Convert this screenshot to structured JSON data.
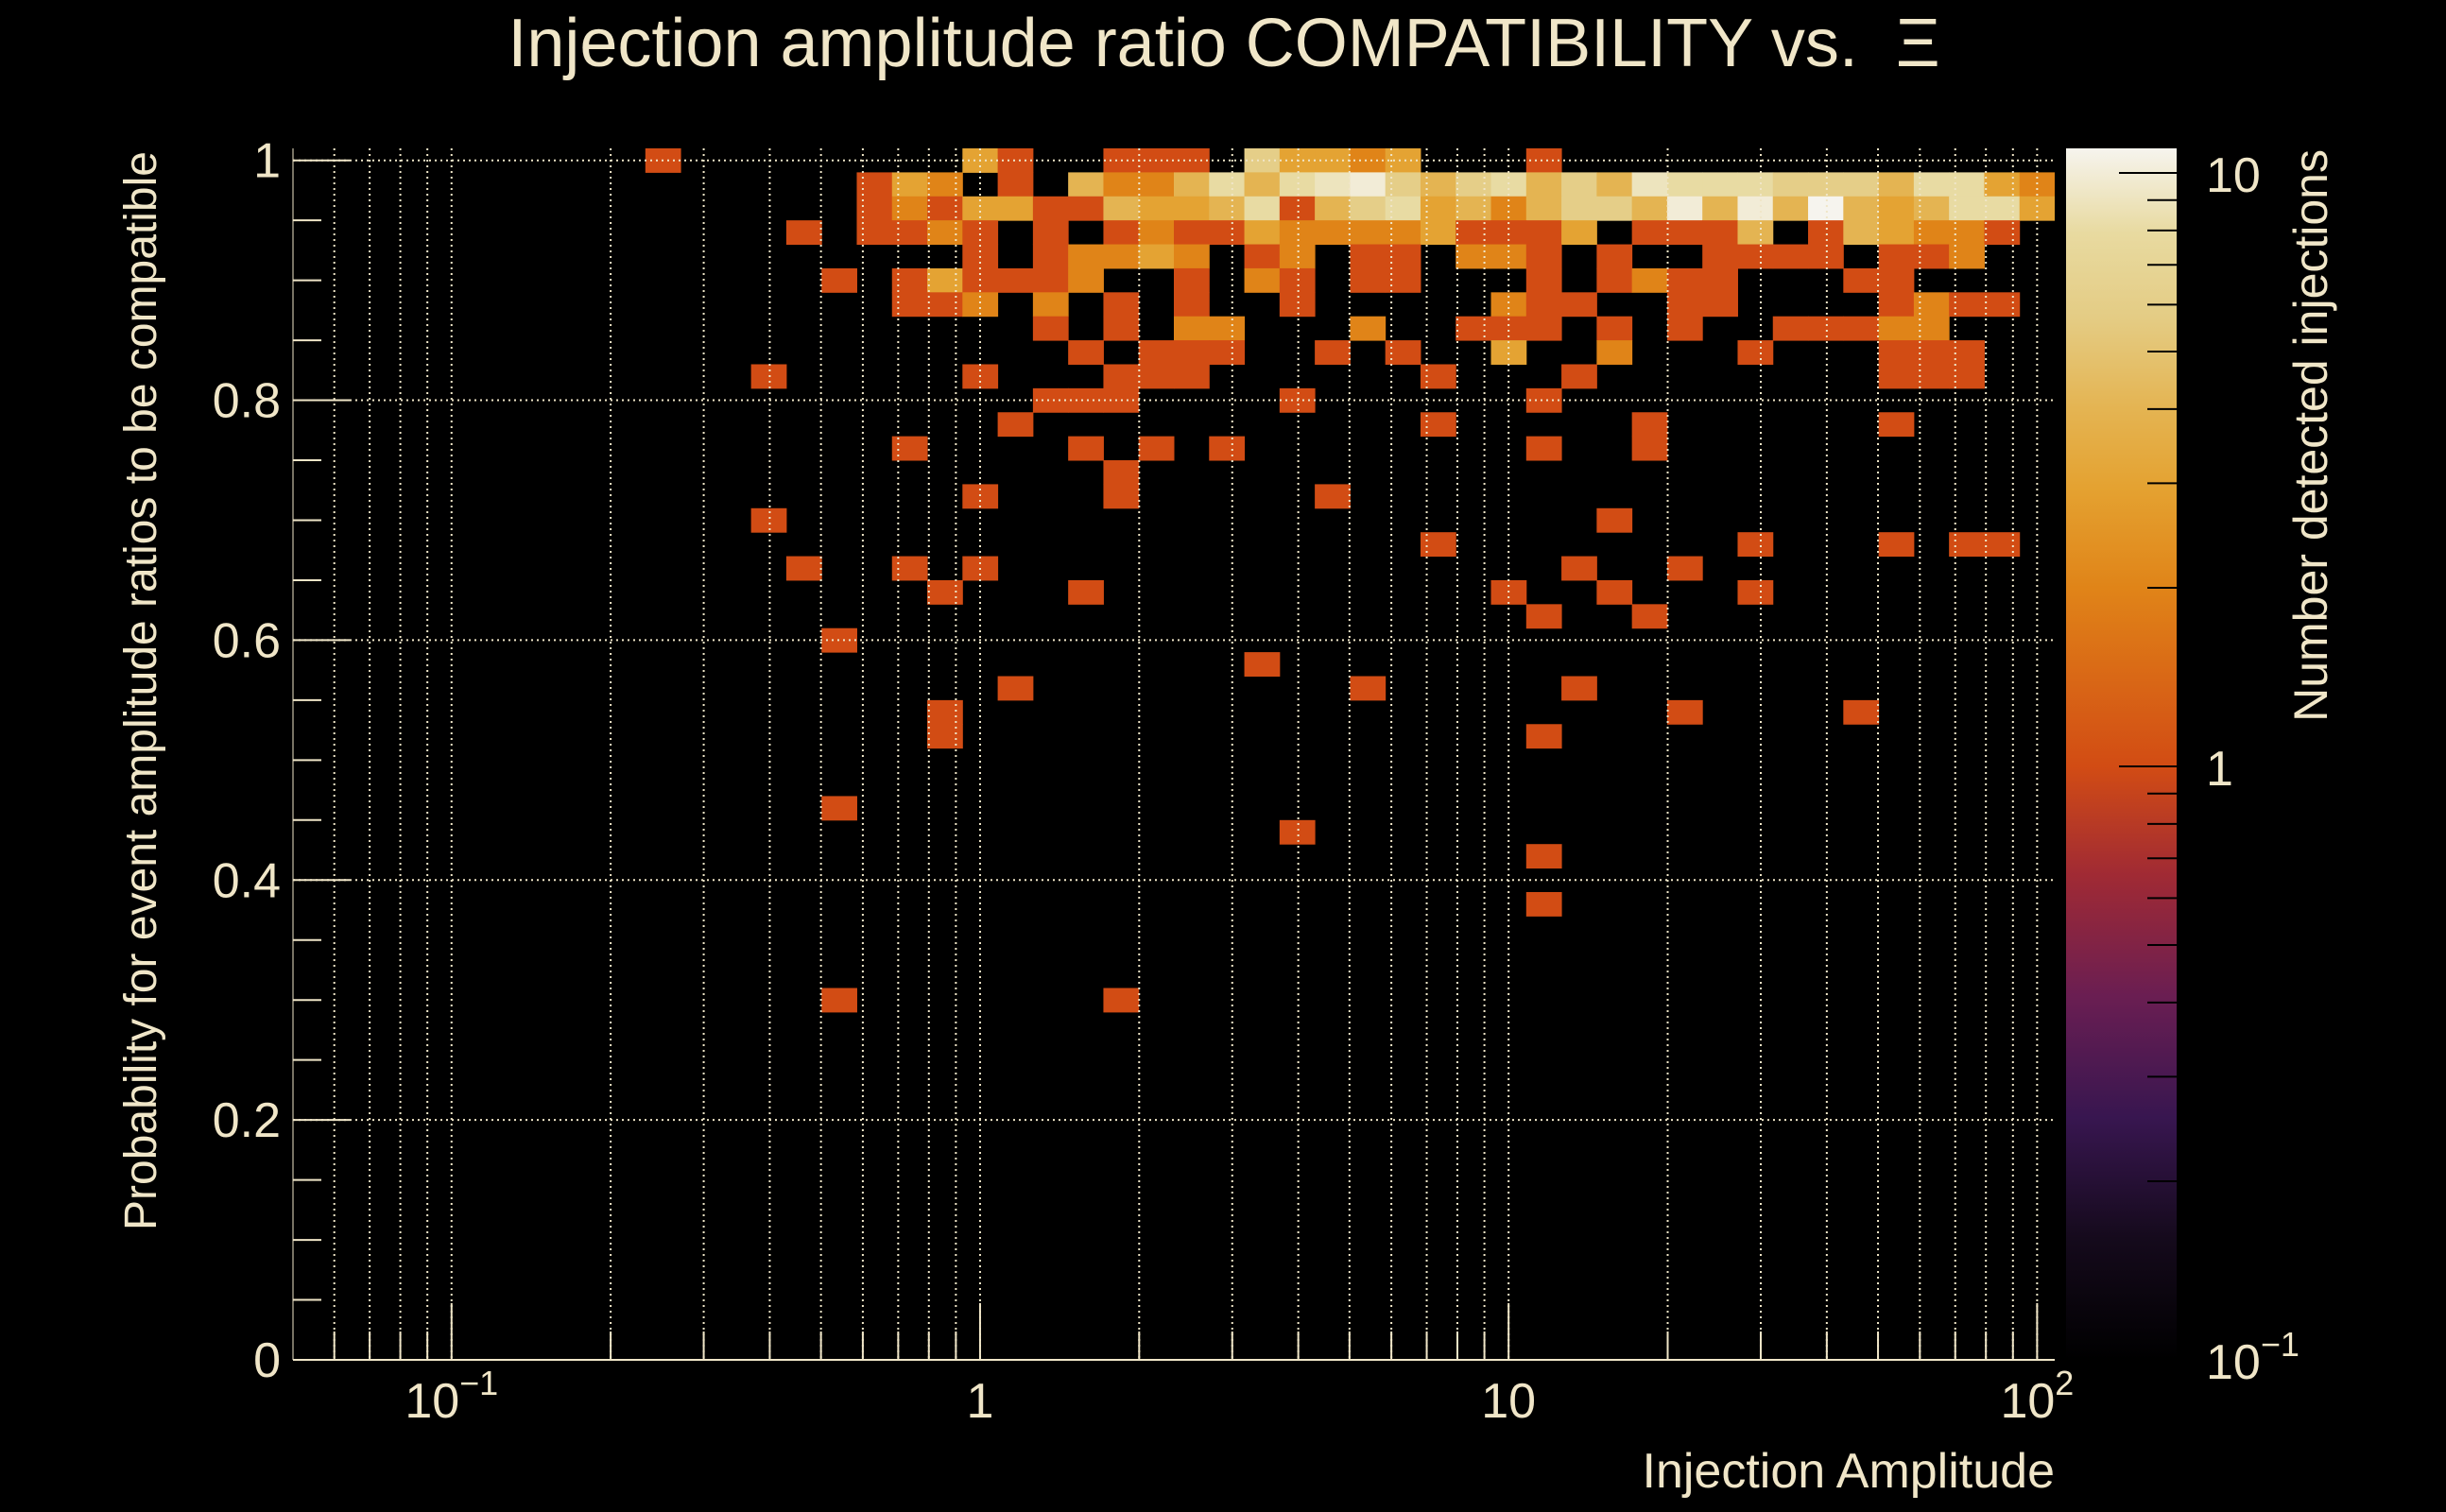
{
  "chart_data": {
    "type": "heatmap",
    "title": "Injection amplitude ratio COMPATIBILITY vs.  Ξ",
    "xlabel": "Injection Amplitude",
    "ylabel": "Probability for event amplitude ratios to be compatible",
    "zlabel": "Number detected injections",
    "x_scale": "log",
    "x_log10_range": [
      -1.3,
      2.0333
    ],
    "x_nbins": 50,
    "ylim": [
      0,
      1.01
    ],
    "y_bin_width": 0.02,
    "z_scale": "log",
    "zlim": [
      0.1,
      11
    ],
    "grid": true,
    "x_ticks": [
      {
        "value": 0.1,
        "base": "10",
        "exp": "−1"
      },
      {
        "value": 1,
        "base": "1",
        "exp": ""
      },
      {
        "value": 10,
        "base": "10",
        "exp": ""
      },
      {
        "value": 100,
        "base": "10",
        "exp": "2"
      }
    ],
    "y_ticks": [
      {
        "value": 0,
        "label": "0"
      },
      {
        "value": 0.2,
        "label": "0.2"
      },
      {
        "value": 0.4,
        "label": "0.4"
      },
      {
        "value": 0.6,
        "label": "0.6"
      },
      {
        "value": 0.8,
        "label": "0.8"
      },
      {
        "value": 1,
        "label": "1"
      }
    ],
    "z_ticks": [
      {
        "value": 10,
        "base": "10",
        "exp": ""
      },
      {
        "value": 1,
        "base": "1",
        "exp": ""
      },
      {
        "value": 0.1,
        "base": "10",
        "exp": "−1"
      }
    ],
    "colormap": [
      [
        0,
        "#000000"
      ],
      [
        0.1,
        "#150a1c"
      ],
      [
        0.2,
        "#381650"
      ],
      [
        0.3,
        "#6a1e52"
      ],
      [
        0.4,
        "#a02a34"
      ],
      [
        0.49,
        "#d24c14"
      ],
      [
        0.637,
        "#e08418"
      ],
      [
        0.72,
        "#e4a231"
      ],
      [
        0.785,
        "#e4b452"
      ],
      [
        0.86,
        "#e4cc84"
      ],
      [
        0.93,
        "#e8daa0"
      ],
      [
        1.0,
        "#f6f4ee"
      ]
    ],
    "cells_format": [
      "x_bin_index",
      "y_bin_center",
      "count"
    ],
    "cells": [
      [
        10,
        1,
        1
      ],
      [
        19,
        1,
        3
      ],
      [
        20,
        1,
        1
      ],
      [
        23,
        1,
        1
      ],
      [
        24,
        1,
        1
      ],
      [
        25,
        1,
        1
      ],
      [
        27,
        1,
        6
      ],
      [
        28,
        1,
        3
      ],
      [
        29,
        1,
        3
      ],
      [
        30,
        1,
        2
      ],
      [
        31,
        1,
        3
      ],
      [
        35,
        1,
        1
      ],
      [
        16,
        0.98,
        1
      ],
      [
        17,
        0.98,
        3
      ],
      [
        18,
        0.98,
        2
      ],
      [
        20,
        0.98,
        1
      ],
      [
        22,
        0.98,
        4
      ],
      [
        23,
        0.98,
        2
      ],
      [
        24,
        0.98,
        2
      ],
      [
        25,
        0.98,
        4
      ],
      [
        26,
        0.98,
        8
      ],
      [
        27,
        0.98,
        4
      ],
      [
        28,
        0.98,
        8
      ],
      [
        29,
        0.98,
        9
      ],
      [
        30,
        0.98,
        10
      ],
      [
        31,
        0.98,
        6
      ],
      [
        32,
        0.98,
        4
      ],
      [
        33,
        0.98,
        6
      ],
      [
        34,
        0.98,
        8
      ],
      [
        35,
        0.98,
        4
      ],
      [
        36,
        0.98,
        6
      ],
      [
        37,
        0.98,
        4
      ],
      [
        38,
        0.98,
        9
      ],
      [
        39,
        0.98,
        8
      ],
      [
        40,
        0.98,
        8
      ],
      [
        41,
        0.98,
        8
      ],
      [
        42,
        0.98,
        6
      ],
      [
        43,
        0.98,
        6
      ],
      [
        44,
        0.98,
        6
      ],
      [
        45,
        0.98,
        4
      ],
      [
        46,
        0.98,
        8
      ],
      [
        47,
        0.98,
        8
      ],
      [
        48,
        0.98,
        3
      ],
      [
        49,
        0.98,
        2
      ],
      [
        16,
        0.96,
        1
      ],
      [
        17,
        0.96,
        2
      ],
      [
        18,
        0.96,
        1
      ],
      [
        19,
        0.96,
        3
      ],
      [
        20,
        0.96,
        3
      ],
      [
        21,
        0.96,
        1
      ],
      [
        22,
        0.96,
        1
      ],
      [
        23,
        0.96,
        4
      ],
      [
        24,
        0.96,
        3
      ],
      [
        25,
        0.96,
        3
      ],
      [
        26,
        0.96,
        4
      ],
      [
        27,
        0.96,
        8
      ],
      [
        28,
        0.96,
        1
      ],
      [
        29,
        0.96,
        4
      ],
      [
        30,
        0.96,
        6
      ],
      [
        31,
        0.96,
        8
      ],
      [
        32,
        0.96,
        3
      ],
      [
        33,
        0.96,
        4
      ],
      [
        34,
        0.96,
        2
      ],
      [
        35,
        0.96,
        4
      ],
      [
        36,
        0.96,
        6
      ],
      [
        37,
        0.96,
        6
      ],
      [
        38,
        0.96,
        4
      ],
      [
        39,
        0.96,
        10
      ],
      [
        40,
        0.96,
        4
      ],
      [
        41,
        0.96,
        10
      ],
      [
        42,
        0.96,
        4
      ],
      [
        43,
        0.96,
        11
      ],
      [
        44,
        0.96,
        4
      ],
      [
        45,
        0.96,
        3
      ],
      [
        46,
        0.96,
        4
      ],
      [
        47,
        0.96,
        8
      ],
      [
        48,
        0.96,
        8
      ],
      [
        49,
        0.96,
        3
      ],
      [
        14,
        0.94,
        1
      ],
      [
        16,
        0.94,
        1
      ],
      [
        17,
        0.94,
        1
      ],
      [
        18,
        0.94,
        2
      ],
      [
        19,
        0.94,
        1
      ],
      [
        21,
        0.94,
        1
      ],
      [
        23,
        0.94,
        1
      ],
      [
        24,
        0.94,
        2
      ],
      [
        25,
        0.94,
        1
      ],
      [
        26,
        0.94,
        1
      ],
      [
        27,
        0.94,
        3
      ],
      [
        28,
        0.94,
        2
      ],
      [
        29,
        0.94,
        2
      ],
      [
        30,
        0.94,
        2
      ],
      [
        31,
        0.94,
        2
      ],
      [
        32,
        0.94,
        3
      ],
      [
        33,
        0.94,
        1
      ],
      [
        34,
        0.94,
        1
      ],
      [
        35,
        0.94,
        1
      ],
      [
        36,
        0.94,
        3
      ],
      [
        38,
        0.94,
        1
      ],
      [
        39,
        0.94,
        1
      ],
      [
        40,
        0.94,
        1
      ],
      [
        41,
        0.94,
        4
      ],
      [
        43,
        0.94,
        1
      ],
      [
        44,
        0.94,
        4
      ],
      [
        45,
        0.94,
        3
      ],
      [
        46,
        0.94,
        2
      ],
      [
        47,
        0.94,
        2
      ],
      [
        48,
        0.94,
        1
      ],
      [
        19,
        0.92,
        1
      ],
      [
        21,
        0.92,
        1
      ],
      [
        22,
        0.92,
        2
      ],
      [
        23,
        0.92,
        2
      ],
      [
        24,
        0.92,
        3
      ],
      [
        25,
        0.92,
        2
      ],
      [
        27,
        0.92,
        1
      ],
      [
        28,
        0.92,
        2
      ],
      [
        30,
        0.92,
        1
      ],
      [
        31,
        0.92,
        1
      ],
      [
        33,
        0.92,
        2
      ],
      [
        34,
        0.92,
        2
      ],
      [
        35,
        0.92,
        1
      ],
      [
        37,
        0.92,
        1
      ],
      [
        40,
        0.92,
        1
      ],
      [
        41,
        0.92,
        1
      ],
      [
        42,
        0.92,
        1
      ],
      [
        43,
        0.92,
        1
      ],
      [
        45,
        0.92,
        1
      ],
      [
        46,
        0.92,
        1
      ],
      [
        47,
        0.92,
        2
      ],
      [
        15,
        0.9,
        1
      ],
      [
        17,
        0.9,
        1
      ],
      [
        18,
        0.9,
        3
      ],
      [
        19,
        0.9,
        1
      ],
      [
        20,
        0.9,
        1
      ],
      [
        21,
        0.9,
        1
      ],
      [
        22,
        0.9,
        2
      ],
      [
        25,
        0.9,
        1
      ],
      [
        27,
        0.9,
        2
      ],
      [
        28,
        0.9,
        1
      ],
      [
        30,
        0.9,
        1
      ],
      [
        31,
        0.9,
        1
      ],
      [
        35,
        0.9,
        1
      ],
      [
        37,
        0.9,
        1
      ],
      [
        38,
        0.9,
        2
      ],
      [
        39,
        0.9,
        1
      ],
      [
        40,
        0.9,
        1
      ],
      [
        44,
        0.9,
        1
      ],
      [
        45,
        0.9,
        1
      ],
      [
        17,
        0.88,
        1
      ],
      [
        18,
        0.88,
        1
      ],
      [
        19,
        0.88,
        2
      ],
      [
        21,
        0.88,
        2
      ],
      [
        23,
        0.88,
        1
      ],
      [
        25,
        0.88,
        1
      ],
      [
        28,
        0.88,
        1
      ],
      [
        34,
        0.88,
        2
      ],
      [
        35,
        0.88,
        1
      ],
      [
        36,
        0.88,
        1
      ],
      [
        39,
        0.88,
        1
      ],
      [
        40,
        0.88,
        1
      ],
      [
        45,
        0.88,
        1
      ],
      [
        46,
        0.88,
        2
      ],
      [
        47,
        0.88,
        1
      ],
      [
        48,
        0.88,
        1
      ],
      [
        21,
        0.86,
        1
      ],
      [
        23,
        0.86,
        1
      ],
      [
        25,
        0.86,
        2
      ],
      [
        26,
        0.86,
        2
      ],
      [
        30,
        0.86,
        2
      ],
      [
        33,
        0.86,
        1
      ],
      [
        34,
        0.86,
        1
      ],
      [
        35,
        0.86,
        1
      ],
      [
        37,
        0.86,
        1
      ],
      [
        39,
        0.86,
        1
      ],
      [
        42,
        0.86,
        1
      ],
      [
        43,
        0.86,
        1
      ],
      [
        44,
        0.86,
        1
      ],
      [
        45,
        0.86,
        2
      ],
      [
        46,
        0.86,
        2
      ],
      [
        22,
        0.84,
        1
      ],
      [
        24,
        0.84,
        1
      ],
      [
        25,
        0.84,
        1
      ],
      [
        26,
        0.84,
        1
      ],
      [
        29,
        0.84,
        1
      ],
      [
        31,
        0.84,
        1
      ],
      [
        34,
        0.84,
        3
      ],
      [
        37,
        0.84,
        2
      ],
      [
        41,
        0.84,
        1
      ],
      [
        45,
        0.84,
        1
      ],
      [
        46,
        0.84,
        1
      ],
      [
        47,
        0.84,
        1
      ],
      [
        13,
        0.82,
        1
      ],
      [
        19,
        0.82,
        1
      ],
      [
        23,
        0.82,
        1
      ],
      [
        24,
        0.82,
        1
      ],
      [
        25,
        0.82,
        1
      ],
      [
        32,
        0.82,
        1
      ],
      [
        36,
        0.82,
        1
      ],
      [
        45,
        0.82,
        1
      ],
      [
        46,
        0.82,
        1
      ],
      [
        47,
        0.82,
        1
      ],
      [
        21,
        0.8,
        1
      ],
      [
        22,
        0.8,
        1
      ],
      [
        23,
        0.8,
        1
      ],
      [
        28,
        0.8,
        1
      ],
      [
        35,
        0.8,
        1
      ],
      [
        20,
        0.78,
        1
      ],
      [
        32,
        0.78,
        1
      ],
      [
        38,
        0.78,
        1
      ],
      [
        45,
        0.78,
        1
      ],
      [
        17,
        0.76,
        1
      ],
      [
        22,
        0.76,
        1
      ],
      [
        24,
        0.76,
        1
      ],
      [
        26,
        0.76,
        1
      ],
      [
        35,
        0.76,
        1
      ],
      [
        38,
        0.76,
        1
      ],
      [
        23,
        0.74,
        1
      ],
      [
        19,
        0.72,
        1
      ],
      [
        23,
        0.72,
        1
      ],
      [
        29,
        0.72,
        1
      ],
      [
        13,
        0.7,
        1
      ],
      [
        37,
        0.7,
        1
      ],
      [
        32,
        0.68,
        1
      ],
      [
        41,
        0.68,
        1
      ],
      [
        45,
        0.68,
        1
      ],
      [
        47,
        0.68,
        1
      ],
      [
        48,
        0.68,
        1
      ],
      [
        14,
        0.66,
        1
      ],
      [
        17,
        0.66,
        1
      ],
      [
        19,
        0.66,
        1
      ],
      [
        36,
        0.66,
        1
      ],
      [
        39,
        0.66,
        1
      ],
      [
        18,
        0.64,
        1
      ],
      [
        22,
        0.64,
        1
      ],
      [
        34,
        0.64,
        1
      ],
      [
        37,
        0.64,
        1
      ],
      [
        41,
        0.64,
        1
      ],
      [
        35,
        0.62,
        1
      ],
      [
        38,
        0.62,
        1
      ],
      [
        15,
        0.6,
        1
      ],
      [
        27,
        0.58,
        1
      ],
      [
        20,
        0.56,
        1
      ],
      [
        30,
        0.56,
        1
      ],
      [
        36,
        0.56,
        1
      ],
      [
        18,
        0.54,
        1
      ],
      [
        39,
        0.54,
        1
      ],
      [
        44,
        0.54,
        1
      ],
      [
        18,
        0.52,
        1
      ],
      [
        35,
        0.52,
        1
      ],
      [
        15,
        0.46,
        1
      ],
      [
        28,
        0.44,
        1
      ],
      [
        35,
        0.42,
        1
      ],
      [
        35,
        0.38,
        1
      ],
      [
        15,
        0.3,
        1
      ],
      [
        23,
        0.3,
        1
      ]
    ]
  }
}
